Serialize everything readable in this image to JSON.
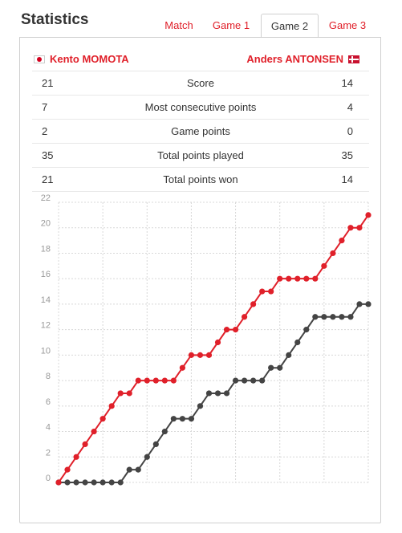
{
  "title": "Statistics",
  "tabs": [
    {
      "label": "Match",
      "active": false
    },
    {
      "label": "Game 1",
      "active": false
    },
    {
      "label": "Game 2",
      "active": true
    },
    {
      "label": "Game 3",
      "active": false
    }
  ],
  "player_left": {
    "name": "Kento MOMOTA",
    "flag": "japan-flag-icon"
  },
  "player_right": {
    "name": "Anders ANTONSEN",
    "flag": "denmark-flag-icon"
  },
  "stats": [
    {
      "left": "21",
      "label": "Score",
      "right": "14"
    },
    {
      "left": "7",
      "label": "Most consecutive points",
      "right": "4"
    },
    {
      "left": "2",
      "label": "Game points",
      "right": "0"
    },
    {
      "left": "35",
      "label": "Total points played",
      "right": "35"
    },
    {
      "left": "21",
      "label": "Total points won",
      "right": "14"
    }
  ],
  "colors": {
    "accent": "#e0202a",
    "momota": "#e0202a",
    "antonsen": "#444444"
  },
  "chart_data": {
    "type": "line",
    "x": [
      0,
      1,
      2,
      3,
      4,
      5,
      6,
      7,
      8,
      9,
      10,
      11,
      12,
      13,
      14,
      15,
      16,
      17,
      18,
      19,
      20,
      21,
      22,
      23,
      24,
      25,
      26,
      27,
      28,
      29,
      30,
      31,
      32,
      33,
      34,
      35
    ],
    "series": [
      {
        "name": "Kento MOMOTA",
        "values": [
          0,
          1,
          2,
          3,
          4,
          5,
          6,
          7,
          7,
          8,
          8,
          8,
          8,
          8,
          9,
          10,
          10,
          10,
          11,
          12,
          12,
          13,
          14,
          15,
          15,
          16,
          16,
          16,
          16,
          16,
          17,
          18,
          19,
          20,
          20,
          21
        ]
      },
      {
        "name": "Anders ANTONSEN",
        "values": [
          0,
          0,
          0,
          0,
          0,
          0,
          0,
          0,
          1,
          1,
          2,
          3,
          4,
          5,
          5,
          5,
          6,
          7,
          7,
          7,
          8,
          8,
          8,
          8,
          9,
          9,
          10,
          11,
          12,
          13,
          13,
          13,
          13,
          13,
          14,
          14
        ]
      }
    ],
    "ylim": [
      0,
      22
    ],
    "yticks": [
      "0",
      "2",
      "4",
      "6",
      "8",
      "10",
      "12",
      "14",
      "16",
      "18",
      "20",
      "22"
    ],
    "grid": true
  }
}
